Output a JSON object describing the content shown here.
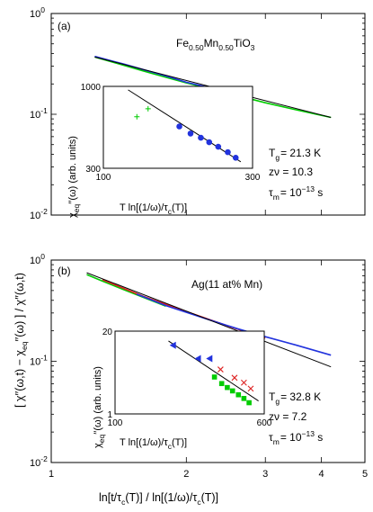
{
  "chart_data": [
    {
      "panel": "(a)",
      "type": "line",
      "material": {
        "base": "Fe",
        "sub1": "0.50",
        "mid": "Mn",
        "sub2": "0.50",
        "tail": "TiO",
        "sub3": "3"
      },
      "xscale": "log",
      "yscale": "log",
      "xlim": [
        1,
        5
      ],
      "ylim": [
        0.01,
        1
      ],
      "yticks": [
        {
          "v": 0.01,
          "m": "10",
          "e": "-2"
        },
        {
          "v": 0.1,
          "m": "10",
          "e": "-1"
        },
        {
          "v": 1,
          "m": "10",
          "e": "0"
        }
      ],
      "series": [
        {
          "color": "#00cc00",
          "x": [
            1.25,
            1.4,
            1.6,
            1.8,
            2.0,
            2.5,
            3.0,
            3.5,
            4.2
          ],
          "y": [
            0.37,
            0.32,
            0.27,
            0.233,
            0.205,
            0.16,
            0.13,
            0.111,
            0.093
          ]
        },
        {
          "color": "#2233dd",
          "x": [
            1.25,
            1.45,
            1.7,
            1.85,
            2.0,
            2.3,
            2.6
          ],
          "y": [
            0.375,
            0.315,
            0.258,
            0.232,
            0.208,
            0.18,
            0.158
          ]
        }
      ],
      "fit": {
        "x": [
          1.25,
          4.2
        ],
        "y": [
          0.37,
          0.093
        ]
      },
      "params": {
        "tg_sym": "T",
        "tg_sub": "g",
        "tg_val": "= 21.3 K",
        "znu_label": "zν = 10.3",
        "tau_sym": "τ",
        "tau_sub": "m",
        "tau_eq": "= 10",
        "tau_exp": "−13",
        "tau_unit": " s"
      },
      "inset": {
        "xscale": "log",
        "yscale": "log",
        "xlim": [
          100,
          300
        ],
        "ylim": [
          300,
          1000
        ],
        "xticks": [
          {
            "v": 100,
            "label": "100"
          },
          {
            "v": 300,
            "label": "300"
          }
        ],
        "yticks": [
          {
            "v": 300,
            "label": "300"
          },
          {
            "v": 1000,
            "label": "1000"
          }
        ],
        "ylabel_sym": "χ",
        "ylabel_sub": "eq",
        "ylabel_tail": "′′(ω)  (arb. units)",
        "xlabel_pre": "T ln[(1/ω)/τ",
        "xlabel_sub": "c",
        "xlabel_post": "(T)]",
        "line": {
          "x": [
            120,
            275
          ],
          "y": [
            950,
            330
          ]
        },
        "points": [
          {
            "marker": "plus",
            "color": "#00cc00",
            "x": [
              128,
              139
            ],
            "y": [
              640,
              720
            ]
          },
          {
            "marker": "circle",
            "color": "#2233dd",
            "x": [
              175,
              190,
              205,
              218,
              233,
              250,
              265
            ],
            "y": [
              555,
              500,
              470,
              440,
              412,
              380,
              350
            ]
          }
        ]
      }
    },
    {
      "panel": "(b)",
      "type": "line",
      "material": "Ag(11 at% Mn)",
      "xscale": "log",
      "yscale": "log",
      "xlim": [
        1,
        5
      ],
      "ylim": [
        0.01,
        1
      ],
      "xticks": [
        {
          "v": 1,
          "label": "1"
        },
        {
          "v": 2,
          "label": "2"
        },
        {
          "v": 3,
          "label": "3"
        },
        {
          "v": 4,
          "label": "4"
        },
        {
          "v": 5,
          "label": "5"
        }
      ],
      "yticks": [
        {
          "v": 0.01,
          "m": "10",
          "e": "-2"
        },
        {
          "v": 0.1,
          "m": "10",
          "e": "-1"
        },
        {
          "v": 1,
          "m": "10",
          "e": "0"
        }
      ],
      "xlabel_pre": "ln[t/τ",
      "xlabel_sub1": "c",
      "xlabel_mid": "(T)] / ln[(1/ω)/τ",
      "xlabel_sub2": "c",
      "xlabel_post": "(T)]",
      "series": [
        {
          "color": "#00cc00",
          "x": [
            1.2,
            1.3,
            1.45,
            1.6,
            1.8
          ],
          "y": [
            0.72,
            0.62,
            0.51,
            0.43,
            0.35
          ]
        },
        {
          "color": "#dd2222",
          "x": [
            1.3,
            1.6,
            2.0,
            2.5,
            3.0
          ],
          "y": [
            0.64,
            0.44,
            0.31,
            0.22,
            0.17
          ]
        },
        {
          "color": "#2233dd",
          "x": [
            1.55,
            1.8,
            2.2,
            2.6,
            3.0,
            3.5,
            4.2
          ],
          "y": [
            0.46,
            0.355,
            0.265,
            0.21,
            0.175,
            0.145,
            0.115
          ]
        }
      ],
      "fit": {
        "x": [
          1.2,
          4.2
        ],
        "y": [
          0.75,
          0.088
        ]
      },
      "params": {
        "tg_sym": "T",
        "tg_sub": "g",
        "tg_val": "= 32.8 K",
        "znu_label": "zν = 7.2",
        "tau_sym": "τ",
        "tau_sub": "m",
        "tau_eq": "= 10",
        "tau_exp": "−13",
        "tau_unit": " s"
      },
      "inset": {
        "xscale": "log",
        "yscale": "log",
        "xlim": [
          100,
          600
        ],
        "ylim": [
          1,
          20
        ],
        "xticks": [
          {
            "v": 100,
            "label": "100"
          },
          {
            "v": 600,
            "label": "600"
          }
        ],
        "yticks": [
          {
            "v": 1,
            "label": "1"
          },
          {
            "v": 20,
            "label": "20"
          }
        ],
        "ylabel_sym": "χ",
        "ylabel_sub": "eq",
        "ylabel_tail": "′′(ω)  (arb. units)",
        "xlabel_pre": "T ln[(1/ω)/τ",
        "xlabel_sub": "c",
        "xlabel_post": "(T)]",
        "line": {
          "x": [
            190,
            560
          ],
          "y": [
            14,
            1.6
          ]
        },
        "points": [
          {
            "marker": "triangle",
            "color": "#2233dd",
            "x": [
              200,
              270,
              310
            ],
            "y": [
              12,
              7.4,
              7.4
            ]
          },
          {
            "marker": "x",
            "color": "#dd2222",
            "x": [
              355,
              420,
              470,
              510
            ],
            "y": [
              5.0,
              3.7,
              3.1,
              2.5
            ]
          },
          {
            "marker": "square",
            "color": "#00cc00",
            "x": [
              330,
              360,
              385,
              410,
              440,
              470,
              500
            ],
            "y": [
              3.8,
              3.0,
              2.6,
              2.3,
              2.0,
              1.75,
              1.5
            ]
          }
        ]
      }
    }
  ],
  "shared_ylabel": {
    "p1": "[ χ′′(ω,t) − χ",
    "sub": "eq",
    "p2": "′′(ω) ] / χ′′(ω,t)"
  }
}
